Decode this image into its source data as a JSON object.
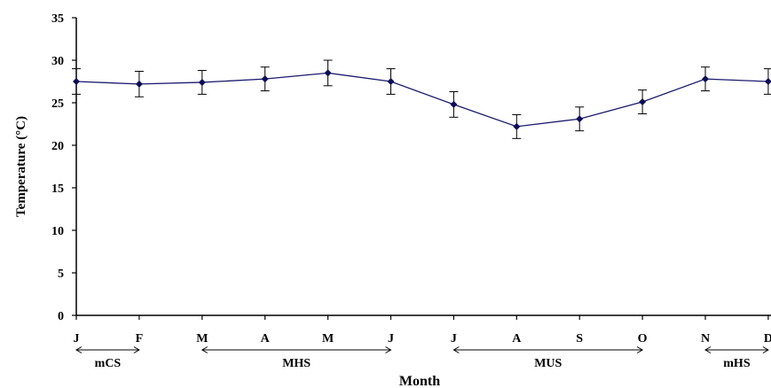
{
  "chart_data": {
    "type": "line",
    "title": "",
    "xlabel": "Month",
    "ylabel": "Temperature (°C)",
    "categories": [
      "J",
      "F",
      "M",
      "A",
      "M",
      "J",
      "J",
      "A",
      "S",
      "O",
      "N",
      "D"
    ],
    "series": [
      {
        "values": [
          27.5,
          27.2,
          27.4,
          27.8,
          28.5,
          27.5,
          24.8,
          22.2,
          23.1,
          25.1,
          27.8,
          27.5
        ],
        "errors": [
          1.5,
          1.5,
          1.4,
          1.4,
          1.5,
          1.5,
          1.5,
          1.4,
          1.4,
          1.4,
          1.4,
          1.5
        ]
      }
    ],
    "ylim": [
      0,
      35
    ],
    "yticks": [
      0,
      5,
      10,
      15,
      20,
      25,
      30,
      35
    ],
    "grid": false,
    "legend": "none",
    "seasons": [
      {
        "label": "mCS",
        "from": 0,
        "to": 1
      },
      {
        "label": "MHS",
        "from": 2,
        "to": 5
      },
      {
        "label": "MUS",
        "from": 6,
        "to": 9
      },
      {
        "label": "mHS",
        "from": 10,
        "to": 11
      }
    ],
    "line_color": "#1a1a6e",
    "marker_color": "#0d0d55"
  }
}
